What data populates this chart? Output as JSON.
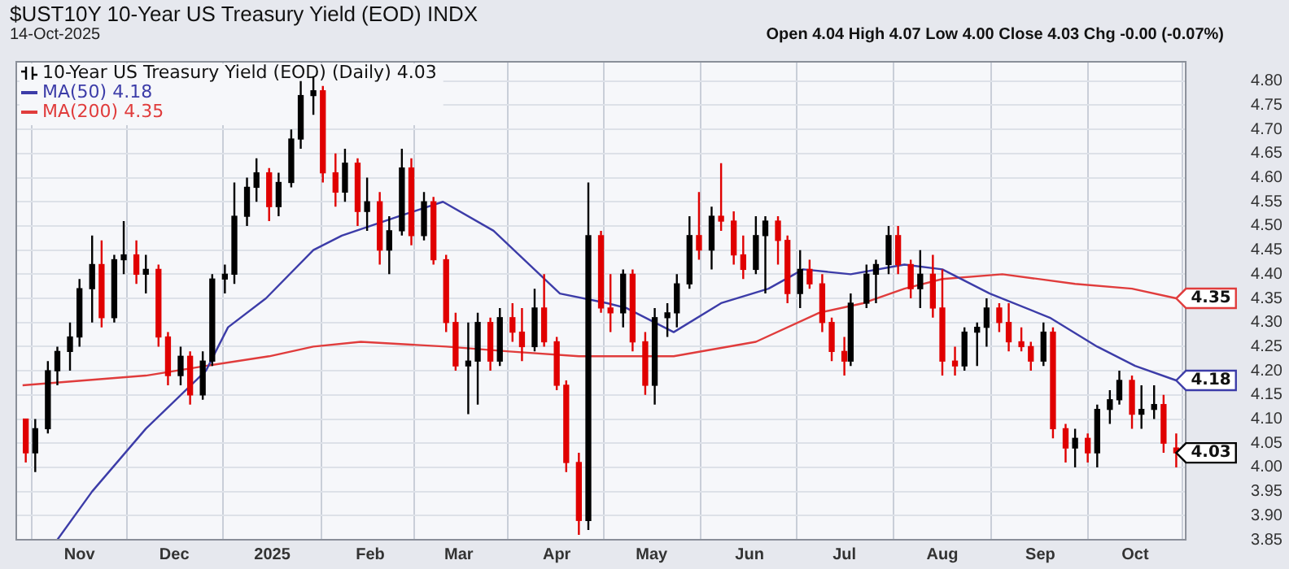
{
  "chart_data": {
    "type": "candlestick",
    "title": "$UST10Y 10-Year US Treasury Yield (EOD) INDX",
    "subtitle": "14-Oct-2025",
    "annotations": [
      "Open 4.04 High 4.07 Low 4.00 Close 4.03 Chg -0.00 (-0.07%)",
      {
        "text": "4.35",
        "x": "2025-10-14",
        "y": 4.35
      },
      {
        "text": "4.18",
        "x": "2025-10-14",
        "y": 4.18
      },
      {
        "text": "4.03",
        "x": "2025-10-14",
        "y": 4.03
      }
    ],
    "series": [
      {
        "name": "10-Year US Treasury Yield (EOD) (Daily) 4.03",
        "x": [
          "2024-10-15",
          "2024-10-18",
          "2024-10-22",
          "2024-10-25",
          "2024-10-29",
          "2024-11-01",
          "2024-11-05",
          "2024-11-08",
          "2024-11-12",
          "2024-11-15",
          "2024-11-19",
          "2024-11-22",
          "2024-11-26",
          "2024-11-29",
          "2024-12-03",
          "2024-12-06",
          "2024-12-10",
          "2024-12-13",
          "2024-12-17",
          "2024-12-20",
          "2024-12-24",
          "2024-12-27",
          "2024-12-31",
          "2025-01-03",
          "2025-01-07",
          "2025-01-10",
          "2025-01-14",
          "2025-01-17",
          "2025-01-21",
          "2025-01-24",
          "2025-01-28",
          "2025-01-31",
          "2025-02-04",
          "2025-02-07",
          "2025-02-11",
          "2025-02-14",
          "2025-02-18",
          "2025-02-21",
          "2025-02-25",
          "2025-02-28",
          "2025-03-04",
          "2025-03-07",
          "2025-03-11",
          "2025-03-14",
          "2025-03-18",
          "2025-03-21",
          "2025-03-25",
          "2025-03-28",
          "2025-04-01",
          "2025-04-04",
          "2025-04-08",
          "2025-04-11",
          "2025-04-15",
          "2025-04-18",
          "2025-04-22",
          "2025-04-25",
          "2025-04-29",
          "2025-05-02",
          "2025-05-06",
          "2025-05-09",
          "2025-05-13",
          "2025-05-16",
          "2025-05-20",
          "2025-05-23",
          "2025-05-27",
          "2025-05-30",
          "2025-06-03",
          "2025-06-06",
          "2025-06-10",
          "2025-06-13",
          "2025-06-17",
          "2025-06-20",
          "2025-06-24",
          "2025-06-27",
          "2025-07-01",
          "2025-07-03",
          "2025-07-08",
          "2025-07-11",
          "2025-07-15",
          "2025-07-18",
          "2025-07-22",
          "2025-07-25",
          "2025-07-29",
          "2025-08-01",
          "2025-08-05",
          "2025-08-08",
          "2025-08-12",
          "2025-08-15",
          "2025-08-19",
          "2025-08-22",
          "2025-08-26",
          "2025-08-29",
          "2025-09-02",
          "2025-09-05",
          "2025-09-09",
          "2025-09-12",
          "2025-09-16",
          "2025-09-19",
          "2025-09-23",
          "2025-09-26",
          "2025-09-30",
          "2025-10-03",
          "2025-10-07",
          "2025-10-10",
          "2025-10-14"
        ],
        "ohlc": [
          [
            4.1,
            4.1,
            4.01,
            4.03
          ],
          [
            4.03,
            4.1,
            3.99,
            4.08
          ],
          [
            4.08,
            4.22,
            4.07,
            4.2
          ],
          [
            4.2,
            4.25,
            4.17,
            4.24
          ],
          [
            4.24,
            4.3,
            4.2,
            4.27
          ],
          [
            4.27,
            4.39,
            4.25,
            4.37
          ],
          [
            4.37,
            4.48,
            4.3,
            4.42
          ],
          [
            4.42,
            4.47,
            4.29,
            4.31
          ],
          [
            4.31,
            4.44,
            4.3,
            4.43
          ],
          [
            4.43,
            4.51,
            4.4,
            4.44
          ],
          [
            4.44,
            4.47,
            4.38,
            4.4
          ],
          [
            4.4,
            4.44,
            4.36,
            4.41
          ],
          [
            4.41,
            4.42,
            4.25,
            4.27
          ],
          [
            4.27,
            4.28,
            4.17,
            4.19
          ],
          [
            4.19,
            4.25,
            4.17,
            4.23
          ],
          [
            4.23,
            4.24,
            4.13,
            4.15
          ],
          [
            4.15,
            4.24,
            4.14,
            4.22
          ],
          [
            4.22,
            4.4,
            4.21,
            4.39
          ],
          [
            4.39,
            4.42,
            4.36,
            4.4
          ],
          [
            4.4,
            4.59,
            4.38,
            4.52
          ],
          [
            4.52,
            4.6,
            4.5,
            4.58
          ],
          [
            4.58,
            4.64,
            4.55,
            4.61
          ],
          [
            4.61,
            4.62,
            4.51,
            4.54
          ],
          [
            4.54,
            4.61,
            4.52,
            4.59
          ],
          [
            4.59,
            4.7,
            4.58,
            4.68
          ],
          [
            4.68,
            4.8,
            4.66,
            4.77
          ],
          [
            4.77,
            4.81,
            4.73,
            4.78
          ],
          [
            4.78,
            4.79,
            4.59,
            4.61
          ],
          [
            4.61,
            4.65,
            4.54,
            4.57
          ],
          [
            4.57,
            4.66,
            4.55,
            4.63
          ],
          [
            4.63,
            4.64,
            4.5,
            4.53
          ],
          [
            4.53,
            4.6,
            4.49,
            4.55
          ],
          [
            4.55,
            4.57,
            4.42,
            4.45
          ],
          [
            4.45,
            4.52,
            4.4,
            4.49
          ],
          [
            4.49,
            4.66,
            4.48,
            4.62
          ],
          [
            4.62,
            4.64,
            4.46,
            4.48
          ],
          [
            4.48,
            4.57,
            4.47,
            4.55
          ],
          [
            4.55,
            4.56,
            4.42,
            4.43
          ],
          [
            4.43,
            4.44,
            4.28,
            4.3
          ],
          [
            4.3,
            4.32,
            4.2,
            4.21
          ],
          [
            4.21,
            4.3,
            4.11,
            4.22
          ],
          [
            4.22,
            4.32,
            4.13,
            4.3
          ],
          [
            4.3,
            4.31,
            4.2,
            4.22
          ],
          [
            4.22,
            4.33,
            4.21,
            4.31
          ],
          [
            4.31,
            4.34,
            4.26,
            4.28
          ],
          [
            4.28,
            4.33,
            4.22,
            4.25
          ],
          [
            4.25,
            4.37,
            4.24,
            4.33
          ],
          [
            4.33,
            4.4,
            4.25,
            4.26
          ],
          [
            4.26,
            4.27,
            4.16,
            4.17
          ],
          [
            4.17,
            4.18,
            3.99,
            4.01
          ],
          [
            4.01,
            4.03,
            3.86,
            3.89
          ],
          [
            3.89,
            4.59,
            3.87,
            4.48
          ],
          [
            4.48,
            4.49,
            4.32,
            4.33
          ],
          [
            4.33,
            4.4,
            4.28,
            4.32
          ],
          [
            4.32,
            4.41,
            4.29,
            4.4
          ],
          [
            4.4,
            4.41,
            4.24,
            4.26
          ],
          [
            4.26,
            4.28,
            4.15,
            4.17
          ],
          [
            4.17,
            4.33,
            4.13,
            4.31
          ],
          [
            4.31,
            4.34,
            4.27,
            4.32
          ],
          [
            4.32,
            4.4,
            4.29,
            4.38
          ],
          [
            4.38,
            4.52,
            4.37,
            4.48
          ],
          [
            4.48,
            4.57,
            4.43,
            4.45
          ],
          [
            4.45,
            4.54,
            4.41,
            4.52
          ],
          [
            4.52,
            4.63,
            4.49,
            4.51
          ],
          [
            4.51,
            4.53,
            4.42,
            4.44
          ],
          [
            4.44,
            4.48,
            4.39,
            4.41
          ],
          [
            4.41,
            4.52,
            4.4,
            4.48
          ],
          [
            4.48,
            4.52,
            4.36,
            4.51
          ],
          [
            4.51,
            4.52,
            4.42,
            4.47
          ],
          [
            4.47,
            4.48,
            4.34,
            4.36
          ],
          [
            4.36,
            4.45,
            4.33,
            4.41
          ],
          [
            4.41,
            4.43,
            4.37,
            4.38
          ],
          [
            4.38,
            4.4,
            4.28,
            4.3
          ],
          [
            4.3,
            4.31,
            4.22,
            4.24
          ],
          [
            4.24,
            4.27,
            4.19,
            4.22
          ],
          [
            4.22,
            4.36,
            4.21,
            4.34
          ],
          [
            4.34,
            4.42,
            4.33,
            4.4
          ],
          [
            4.4,
            4.43,
            4.34,
            4.42
          ],
          [
            4.42,
            4.5,
            4.4,
            4.48
          ],
          [
            4.48,
            4.5,
            4.4,
            4.42
          ],
          [
            4.42,
            4.43,
            4.35,
            4.37
          ],
          [
            4.37,
            4.45,
            4.33,
            4.4
          ],
          [
            4.4,
            4.44,
            4.31,
            4.33
          ],
          [
            4.33,
            4.41,
            4.19,
            4.22
          ],
          [
            4.22,
            4.25,
            4.19,
            4.21
          ],
          [
            4.21,
            4.29,
            4.2,
            4.28
          ],
          [
            4.28,
            4.3,
            4.21,
            4.29
          ],
          [
            4.29,
            4.35,
            4.25,
            4.33
          ],
          [
            4.33,
            4.34,
            4.28,
            4.3
          ],
          [
            4.3,
            4.34,
            4.24,
            4.26
          ],
          [
            4.26,
            4.29,
            4.24,
            4.25
          ],
          [
            4.25,
            4.26,
            4.2,
            4.22
          ],
          [
            4.22,
            4.3,
            4.21,
            4.28
          ],
          [
            4.28,
            4.29,
            4.06,
            4.08
          ],
          [
            4.08,
            4.09,
            4.01,
            4.04
          ],
          [
            4.04,
            4.08,
            4.0,
            4.06
          ],
          [
            4.06,
            4.07,
            4.01,
            4.03
          ],
          [
            4.03,
            4.13,
            4.0,
            4.12
          ],
          [
            4.12,
            4.16,
            4.09,
            4.14
          ],
          [
            4.14,
            4.2,
            4.13,
            4.18
          ],
          [
            4.18,
            4.19,
            4.08,
            4.11
          ],
          [
            4.11,
            4.17,
            4.08,
            4.12
          ],
          [
            4.12,
            4.17,
            4.1,
            4.13
          ],
          [
            4.13,
            4.15,
            4.03,
            4.05
          ],
          [
            4.04,
            4.07,
            4.0,
            4.03
          ]
        ],
        "colors": [
          "#e00000",
          "#000000",
          "#000000",
          "#000000",
          "#000000",
          "#000000",
          "#000000",
          "#e00000",
          "#000000",
          "#000000",
          "#e00000",
          "#000000",
          "#e00000",
          "#e00000",
          "#000000",
          "#e00000",
          "#000000",
          "#000000",
          "#000000",
          "#000000",
          "#000000",
          "#000000",
          "#e00000",
          "#000000",
          "#000000",
          "#000000",
          "#000000",
          "#e00000",
          "#e00000",
          "#000000",
          "#e00000",
          "#000000",
          "#e00000",
          "#000000",
          "#000000",
          "#e00000",
          "#000000",
          "#e00000",
          "#e00000",
          "#e00000",
          "#000000",
          "#000000",
          "#e00000",
          "#000000",
          "#e00000",
          "#e00000",
          "#000000",
          "#e00000",
          "#e00000",
          "#e00000",
          "#e00000",
          "#000000",
          "#e00000",
          "#e00000",
          "#000000",
          "#e00000",
          "#e00000",
          "#000000",
          "#000000",
          "#000000",
          "#000000",
          "#e00000",
          "#000000",
          "#e00000",
          "#e00000",
          "#e00000",
          "#000000",
          "#000000",
          "#e00000",
          "#e00000",
          "#000000",
          "#e00000",
          "#e00000",
          "#e00000",
          "#e00000",
          "#000000",
          "#000000",
          "#000000",
          "#000000",
          "#e00000",
          "#e00000",
          "#000000",
          "#e00000",
          "#e00000",
          "#e00000",
          "#000000",
          "#000000",
          "#000000",
          "#e00000",
          "#e00000",
          "#e00000",
          "#e00000",
          "#000000",
          "#e00000",
          "#e00000",
          "#000000",
          "#e00000",
          "#000000",
          "#000000",
          "#000000",
          "#e00000",
          "#000000",
          "#000000",
          "#e00000",
          "#e00000"
        ]
      },
      {
        "type": "line",
        "name": "MA(50) 4.18",
        "color": "#3c3ca8",
        "x": [
          "2024-10-25",
          "2024-11-05",
          "2024-11-22",
          "2024-12-11",
          "2024-12-18",
          "2024-12-30",
          "2025-01-14",
          "2025-01-23",
          "2025-02-10",
          "2025-02-24",
          "2025-03-12",
          "2025-04-02",
          "2025-04-17",
          "2025-04-23",
          "2025-05-08",
          "2025-05-23",
          "2025-06-07",
          "2025-06-18",
          "2025-07-03",
          "2025-07-20",
          "2025-08-01",
          "2025-08-16",
          "2025-09-04",
          "2025-09-19",
          "2025-10-01",
          "2025-10-14"
        ],
        "values": [
          3.85,
          3.95,
          4.08,
          4.2,
          4.29,
          4.35,
          4.45,
          4.48,
          4.52,
          4.55,
          4.49,
          4.36,
          4.34,
          4.33,
          4.28,
          4.34,
          4.37,
          4.41,
          4.4,
          4.42,
          4.41,
          4.36,
          4.31,
          4.25,
          4.21,
          4.18
        ]
      },
      {
        "type": "line",
        "name": "MA(200) 4.35",
        "color": "#e03c3c",
        "x": [
          "2024-10-14",
          "2024-11-22",
          "2024-12-11",
          "2024-12-31",
          "2025-01-14",
          "2025-01-29",
          "2025-02-25",
          "2025-03-17",
          "2025-04-08",
          "2025-05-08",
          "2025-06-03",
          "2025-06-23",
          "2025-07-07",
          "2025-07-20",
          "2025-08-01",
          "2025-08-20",
          "2025-09-12",
          "2025-09-30",
          "2025-10-14"
        ],
        "values": [
          4.17,
          4.19,
          4.21,
          4.23,
          4.25,
          4.26,
          4.25,
          4.24,
          4.23,
          4.23,
          4.26,
          4.32,
          4.34,
          4.37,
          4.39,
          4.4,
          4.38,
          4.37,
          4.35
        ]
      }
    ],
    "xlim": [
      "2024-10-12",
      "2025-10-17"
    ],
    "xticks": [
      {
        "value": "2024-11-01",
        "label": "Nov"
      },
      {
        "value": "2024-12-01",
        "label": "Dec"
      },
      {
        "value": "2025-01-01",
        "label": "2025"
      },
      {
        "value": "2025-02-01",
        "label": "Feb"
      },
      {
        "value": "2025-03-01",
        "label": "Mar"
      },
      {
        "value": "2025-04-01",
        "label": "Apr"
      },
      {
        "value": "2025-05-01",
        "label": "May"
      },
      {
        "value": "2025-06-01",
        "label": "Jun"
      },
      {
        "value": "2025-07-01",
        "label": "Jul"
      },
      {
        "value": "2025-08-01",
        "label": "Aug"
      },
      {
        "value": "2025-09-01",
        "label": "Sep"
      },
      {
        "value": "2025-10-01",
        "label": "Oct"
      }
    ],
    "ylim": [
      3.85,
      4.84
    ],
    "yticks": [
      {
        "value": 3.85,
        "label": "3.85"
      },
      {
        "value": 3.9,
        "label": "3.90"
      },
      {
        "value": 3.95,
        "label": "3.95"
      },
      {
        "value": 4.0,
        "label": "4.00"
      },
      {
        "value": 4.05,
        "label": "4.05"
      },
      {
        "value": 4.1,
        "label": "4.10"
      },
      {
        "value": 4.15,
        "label": "4.15"
      },
      {
        "value": 4.2,
        "label": "4.20"
      },
      {
        "value": 4.25,
        "label": "4.25"
      },
      {
        "value": 4.3,
        "label": "4.30"
      },
      {
        "value": 4.35,
        "label": "4.35"
      },
      {
        "value": 4.4,
        "label": "4.40"
      },
      {
        "value": 4.45,
        "label": "4.45"
      },
      {
        "value": 4.5,
        "label": "4.50"
      },
      {
        "value": 4.55,
        "label": "4.55"
      },
      {
        "value": 4.6,
        "label": "4.60"
      },
      {
        "value": 4.65,
        "label": "4.65"
      },
      {
        "value": 4.7,
        "label": "4.70"
      },
      {
        "value": 4.75,
        "label": "4.75"
      },
      {
        "value": 4.8,
        "label": "4.80"
      }
    ],
    "grid": true,
    "legend": "top left",
    "marker": "none"
  }
}
